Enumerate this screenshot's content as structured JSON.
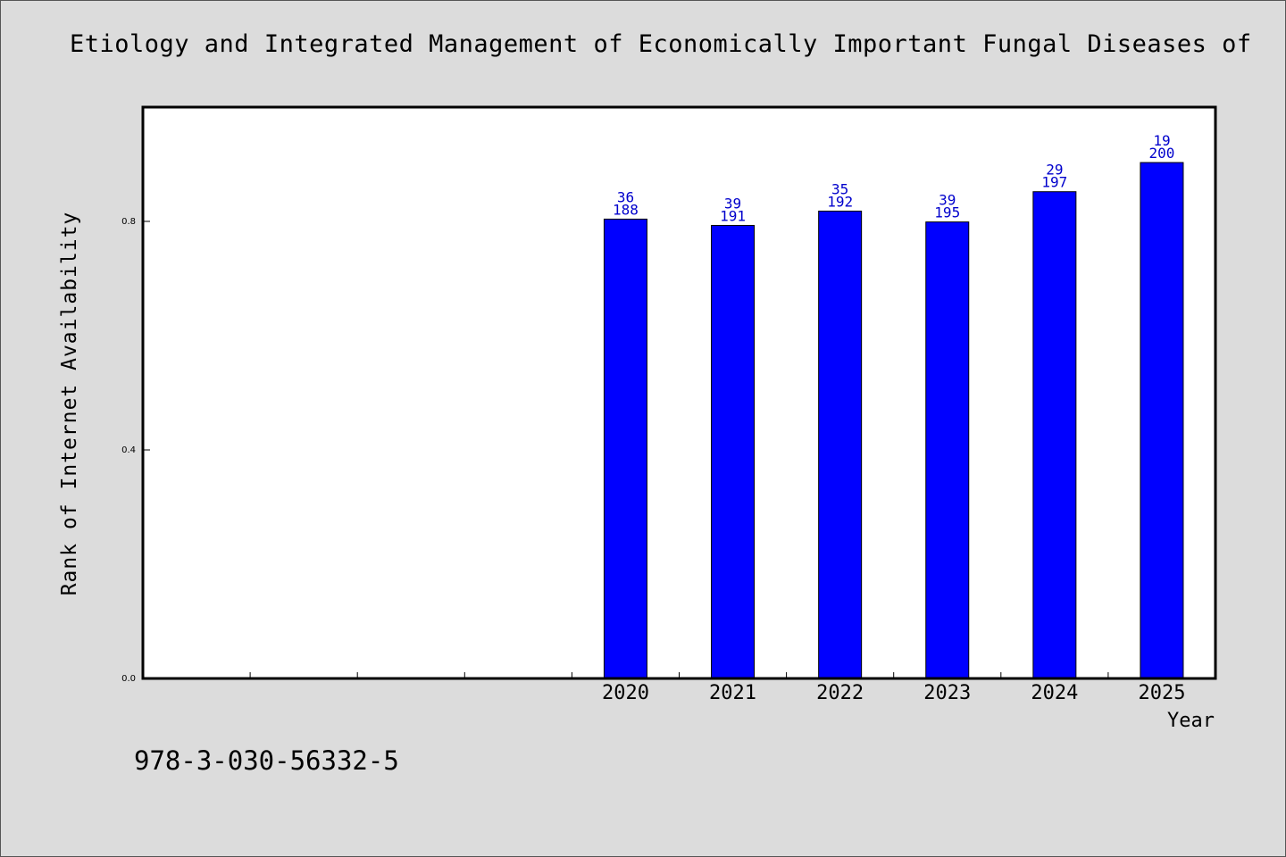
{
  "chart_data": {
    "type": "bar",
    "title": "Etiology and Integrated Management of Economically Important Fungal Diseases of",
    "xlabel": "Year",
    "ylabel": "Rank of Internet Availability",
    "categories": [
      "2020",
      "2021",
      "2022",
      "2023",
      "2024",
      "2025"
    ],
    "values": [
      0.804,
      0.793,
      0.818,
      0.799,
      0.852,
      0.903
    ],
    "bar_labels_top": [
      "36",
      "39",
      "35",
      "39",
      "29",
      "19"
    ],
    "bar_labels_bottom": [
      "188",
      "191",
      "192",
      "195",
      "197",
      "200"
    ],
    "ylim": [
      0,
      1.0
    ],
    "yticks": [
      "0.0",
      "0.4",
      "0.8"
    ],
    "bar_color": "#0000ff",
    "label_color": "#0000cc",
    "grid": false,
    "legend": "none"
  },
  "footer": {
    "isbn": "978-3-030-56332-5"
  }
}
